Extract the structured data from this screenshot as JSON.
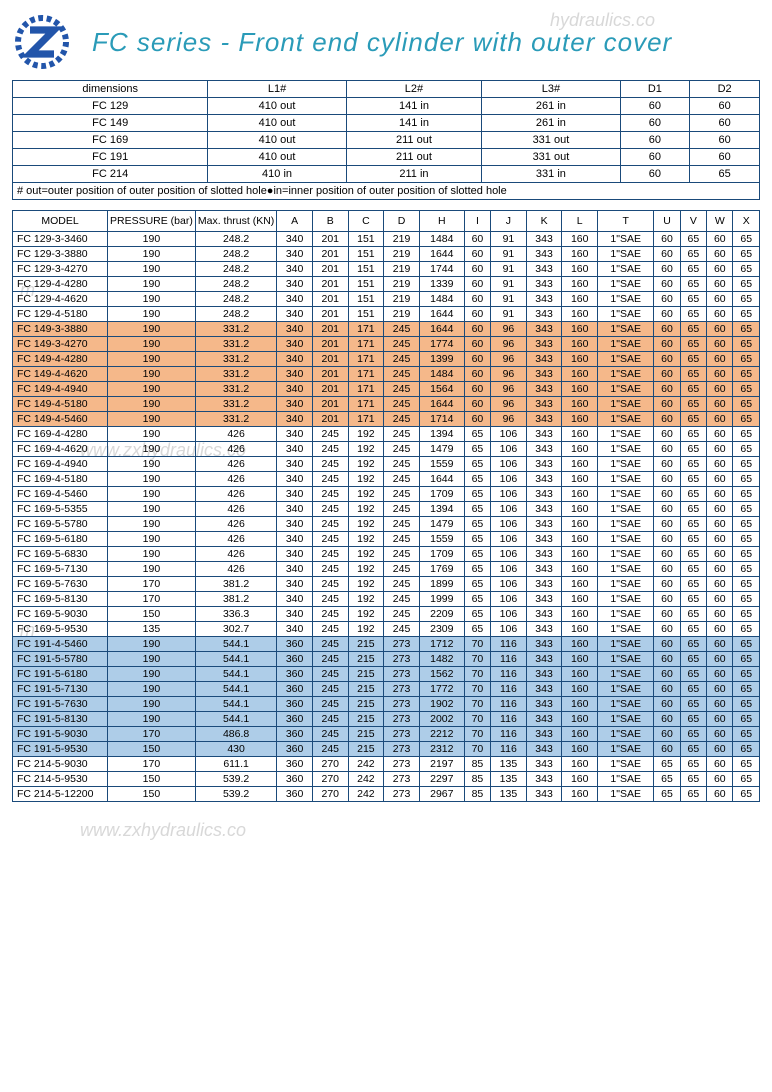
{
  "title": "FC series - Front end cylinder with outer cover",
  "dimTable": {
    "columns": [
      "dimensions",
      "L1#",
      "L2#",
      "L3#",
      "D1",
      "D2"
    ],
    "rows": [
      [
        "FC 129",
        "410 out",
        "141 in",
        "261 in",
        "60",
        "60"
      ],
      [
        "FC 149",
        "410 out",
        "141 in",
        "261 in",
        "60",
        "60"
      ],
      [
        "FC 169",
        "410 out",
        "211 out",
        "331 out",
        "60",
        "60"
      ],
      [
        "FC 191",
        "410 out",
        "211 out",
        "331 out",
        "60",
        "60"
      ],
      [
        "FC 214",
        "410 in",
        "211 in",
        "331 in",
        "60",
        "65"
      ]
    ]
  },
  "footnote": "# out=outer position of outer position of slotted hole●in=inner position of outer position of slotted hole",
  "specTable": {
    "columns": [
      "MODEL",
      "PRESSURE (bar)",
      "Max. thrust (KN)",
      "A",
      "B",
      "C",
      "D",
      "H",
      "I",
      "J",
      "K",
      "L",
      "T",
      "U",
      "V",
      "W",
      "X"
    ],
    "rows": [
      {
        "hl": "",
        "c": [
          "FC 129-3-3460",
          "190",
          "248.2",
          "340",
          "201",
          "151",
          "219",
          "1484",
          "60",
          "91",
          "343",
          "160",
          "1\"SAE",
          "60",
          "65",
          "60",
          "65"
        ]
      },
      {
        "hl": "",
        "c": [
          "FC 129-3-3880",
          "190",
          "248.2",
          "340",
          "201",
          "151",
          "219",
          "1644",
          "60",
          "91",
          "343",
          "160",
          "1\"SAE",
          "60",
          "65",
          "60",
          "65"
        ]
      },
      {
        "hl": "",
        "c": [
          "FC 129-3-4270",
          "190",
          "248.2",
          "340",
          "201",
          "151",
          "219",
          "1744",
          "60",
          "91",
          "343",
          "160",
          "1\"SAE",
          "60",
          "65",
          "60",
          "65"
        ]
      },
      {
        "hl": "",
        "c": [
          "FC 129-4-4280",
          "190",
          "248.2",
          "340",
          "201",
          "151",
          "219",
          "1339",
          "60",
          "91",
          "343",
          "160",
          "1\"SAE",
          "60",
          "65",
          "60",
          "65"
        ]
      },
      {
        "hl": "",
        "c": [
          "FC 129-4-4620",
          "190",
          "248.2",
          "340",
          "201",
          "151",
          "219",
          "1484",
          "60",
          "91",
          "343",
          "160",
          "1\"SAE",
          "60",
          "65",
          "60",
          "65"
        ]
      },
      {
        "hl": "",
        "c": [
          "FC 129-4-5180",
          "190",
          "248.2",
          "340",
          "201",
          "151",
          "219",
          "1644",
          "60",
          "91",
          "343",
          "160",
          "1\"SAE",
          "60",
          "65",
          "60",
          "65"
        ]
      },
      {
        "hl": "orange",
        "c": [
          "FC 149-3-3880",
          "190",
          "331.2",
          "340",
          "201",
          "171",
          "245",
          "1644",
          "60",
          "96",
          "343",
          "160",
          "1\"SAE",
          "60",
          "65",
          "60",
          "65"
        ]
      },
      {
        "hl": "orange",
        "c": [
          "FC 149-3-4270",
          "190",
          "331.2",
          "340",
          "201",
          "171",
          "245",
          "1774",
          "60",
          "96",
          "343",
          "160",
          "1\"SAE",
          "60",
          "65",
          "60",
          "65"
        ]
      },
      {
        "hl": "orange",
        "c": [
          "FC 149-4-4280",
          "190",
          "331.2",
          "340",
          "201",
          "171",
          "245",
          "1399",
          "60",
          "96",
          "343",
          "160",
          "1\"SAE",
          "60",
          "65",
          "60",
          "65"
        ]
      },
      {
        "hl": "orange",
        "c": [
          "FC 149-4-4620",
          "190",
          "331.2",
          "340",
          "201",
          "171",
          "245",
          "1484",
          "60",
          "96",
          "343",
          "160",
          "1\"SAE",
          "60",
          "65",
          "60",
          "65"
        ]
      },
      {
        "hl": "orange",
        "c": [
          "FC 149-4-4940",
          "190",
          "331.2",
          "340",
          "201",
          "171",
          "245",
          "1564",
          "60",
          "96",
          "343",
          "160",
          "1\"SAE",
          "60",
          "65",
          "60",
          "65"
        ]
      },
      {
        "hl": "orange",
        "c": [
          "FC 149-4-5180",
          "190",
          "331.2",
          "340",
          "201",
          "171",
          "245",
          "1644",
          "60",
          "96",
          "343",
          "160",
          "1\"SAE",
          "60",
          "65",
          "60",
          "65"
        ]
      },
      {
        "hl": "orange",
        "c": [
          "FC 149-4-5460",
          "190",
          "331.2",
          "340",
          "201",
          "171",
          "245",
          "1714",
          "60",
          "96",
          "343",
          "160",
          "1\"SAE",
          "60",
          "65",
          "60",
          "65"
        ]
      },
      {
        "hl": "",
        "c": [
          "FC 169-4-4280",
          "190",
          "426",
          "340",
          "245",
          "192",
          "245",
          "1394",
          "65",
          "106",
          "343",
          "160",
          "1\"SAE",
          "60",
          "65",
          "60",
          "65"
        ]
      },
      {
        "hl": "",
        "c": [
          "FC 169-4-4620",
          "190",
          "426",
          "340",
          "245",
          "192",
          "245",
          "1479",
          "65",
          "106",
          "343",
          "160",
          "1\"SAE",
          "60",
          "65",
          "60",
          "65"
        ]
      },
      {
        "hl": "",
        "c": [
          "FC 169-4-4940",
          "190",
          "426",
          "340",
          "245",
          "192",
          "245",
          "1559",
          "65",
          "106",
          "343",
          "160",
          "1\"SAE",
          "60",
          "65",
          "60",
          "65"
        ]
      },
      {
        "hl": "",
        "c": [
          "FC 169-4-5180",
          "190",
          "426",
          "340",
          "245",
          "192",
          "245",
          "1644",
          "65",
          "106",
          "343",
          "160",
          "1\"SAE",
          "60",
          "65",
          "60",
          "65"
        ]
      },
      {
        "hl": "",
        "c": [
          "FC 169-4-5460",
          "190",
          "426",
          "340",
          "245",
          "192",
          "245",
          "1709",
          "65",
          "106",
          "343",
          "160",
          "1\"SAE",
          "60",
          "65",
          "60",
          "65"
        ]
      },
      {
        "hl": "",
        "c": [
          "FC 169-5-5355",
          "190",
          "426",
          "340",
          "245",
          "192",
          "245",
          "1394",
          "65",
          "106",
          "343",
          "160",
          "1\"SAE",
          "60",
          "65",
          "60",
          "65"
        ]
      },
      {
        "hl": "",
        "c": [
          "FC 169-5-5780",
          "190",
          "426",
          "340",
          "245",
          "192",
          "245",
          "1479",
          "65",
          "106",
          "343",
          "160",
          "1\"SAE",
          "60",
          "65",
          "60",
          "65"
        ]
      },
      {
        "hl": "",
        "c": [
          "FC 169-5-6180",
          "190",
          "426",
          "340",
          "245",
          "192",
          "245",
          "1559",
          "65",
          "106",
          "343",
          "160",
          "1\"SAE",
          "60",
          "65",
          "60",
          "65"
        ]
      },
      {
        "hl": "",
        "c": [
          "FC 169-5-6830",
          "190",
          "426",
          "340",
          "245",
          "192",
          "245",
          "1709",
          "65",
          "106",
          "343",
          "160",
          "1\"SAE",
          "60",
          "65",
          "60",
          "65"
        ]
      },
      {
        "hl": "",
        "c": [
          "FC 169-5-7130",
          "190",
          "426",
          "340",
          "245",
          "192",
          "245",
          "1769",
          "65",
          "106",
          "343",
          "160",
          "1\"SAE",
          "60",
          "65",
          "60",
          "65"
        ]
      },
      {
        "hl": "",
        "c": [
          "FC 169-5-7630",
          "170",
          "381.2",
          "340",
          "245",
          "192",
          "245",
          "1899",
          "65",
          "106",
          "343",
          "160",
          "1\"SAE",
          "60",
          "65",
          "60",
          "65"
        ]
      },
      {
        "hl": "",
        "c": [
          "FC 169-5-8130",
          "170",
          "381.2",
          "340",
          "245",
          "192",
          "245",
          "1999",
          "65",
          "106",
          "343",
          "160",
          "1\"SAE",
          "60",
          "65",
          "60",
          "65"
        ]
      },
      {
        "hl": "",
        "c": [
          "FC 169-5-9030",
          "150",
          "336.3",
          "340",
          "245",
          "192",
          "245",
          "2209",
          "65",
          "106",
          "343",
          "160",
          "1\"SAE",
          "60",
          "65",
          "60",
          "65"
        ]
      },
      {
        "hl": "",
        "c": [
          "FC 169-5-9530",
          "135",
          "302.7",
          "340",
          "245",
          "192",
          "245",
          "2309",
          "65",
          "106",
          "343",
          "160",
          "1\"SAE",
          "60",
          "65",
          "60",
          "65"
        ]
      },
      {
        "hl": "blue",
        "c": [
          "FC 191-4-5460",
          "190",
          "544.1",
          "360",
          "245",
          "215",
          "273",
          "1712",
          "70",
          "116",
          "343",
          "160",
          "1\"SAE",
          "60",
          "65",
          "60",
          "65"
        ]
      },
      {
        "hl": "blue",
        "c": [
          "FC 191-5-5780",
          "190",
          "544.1",
          "360",
          "245",
          "215",
          "273",
          "1482",
          "70",
          "116",
          "343",
          "160",
          "1\"SAE",
          "60",
          "65",
          "60",
          "65"
        ]
      },
      {
        "hl": "blue",
        "c": [
          "FC 191-5-6180",
          "190",
          "544.1",
          "360",
          "245",
          "215",
          "273",
          "1562",
          "70",
          "116",
          "343",
          "160",
          "1\"SAE",
          "60",
          "65",
          "60",
          "65"
        ]
      },
      {
        "hl": "blue",
        "c": [
          "FC 191-5-7130",
          "190",
          "544.1",
          "360",
          "245",
          "215",
          "273",
          "1772",
          "70",
          "116",
          "343",
          "160",
          "1\"SAE",
          "60",
          "65",
          "60",
          "65"
        ]
      },
      {
        "hl": "blue",
        "c": [
          "FC 191-5-7630",
          "190",
          "544.1",
          "360",
          "245",
          "215",
          "273",
          "1902",
          "70",
          "116",
          "343",
          "160",
          "1\"SAE",
          "60",
          "65",
          "60",
          "65"
        ]
      },
      {
        "hl": "blue",
        "c": [
          "FC 191-5-8130",
          "190",
          "544.1",
          "360",
          "245",
          "215",
          "273",
          "2002",
          "70",
          "116",
          "343",
          "160",
          "1\"SAE",
          "60",
          "65",
          "60",
          "65"
        ]
      },
      {
        "hl": "blue",
        "c": [
          "FC 191-5-9030",
          "170",
          "486.8",
          "360",
          "245",
          "215",
          "273",
          "2212",
          "70",
          "116",
          "343",
          "160",
          "1\"SAE",
          "60",
          "65",
          "60",
          "65"
        ]
      },
      {
        "hl": "blue",
        "c": [
          "FC 191-5-9530",
          "150",
          "430",
          "360",
          "245",
          "215",
          "273",
          "2312",
          "70",
          "116",
          "343",
          "160",
          "1\"SAE",
          "60",
          "65",
          "60",
          "65"
        ]
      },
      {
        "hl": "",
        "c": [
          "FC 214-5-9030",
          "170",
          "611.1",
          "360",
          "270",
          "242",
          "273",
          "2197",
          "85",
          "135",
          "343",
          "160",
          "1\"SAE",
          "65",
          "65",
          "60",
          "65"
        ]
      },
      {
        "hl": "",
        "c": [
          "FC 214-5-9530",
          "150",
          "539.2",
          "360",
          "270",
          "242",
          "273",
          "2297",
          "85",
          "135",
          "343",
          "160",
          "1\"SAE",
          "65",
          "65",
          "60",
          "65"
        ]
      },
      {
        "hl": "",
        "c": [
          "FC 214-5-12200",
          "150",
          "539.2",
          "360",
          "270",
          "242",
          "273",
          "2967",
          "85",
          "135",
          "343",
          "160",
          "1\"SAE",
          "65",
          "65",
          "60",
          "65"
        ]
      }
    ]
  },
  "watermarks": [
    "www.zxhydraulics.co",
    "hydraulics.co",
    "www.z",
    "m"
  ],
  "colors": {
    "title": "#2a9bb8",
    "border": "#1a4a7a",
    "orange": "#f5b88a",
    "blue": "#aecde8",
    "logo": "#2255aa"
  }
}
